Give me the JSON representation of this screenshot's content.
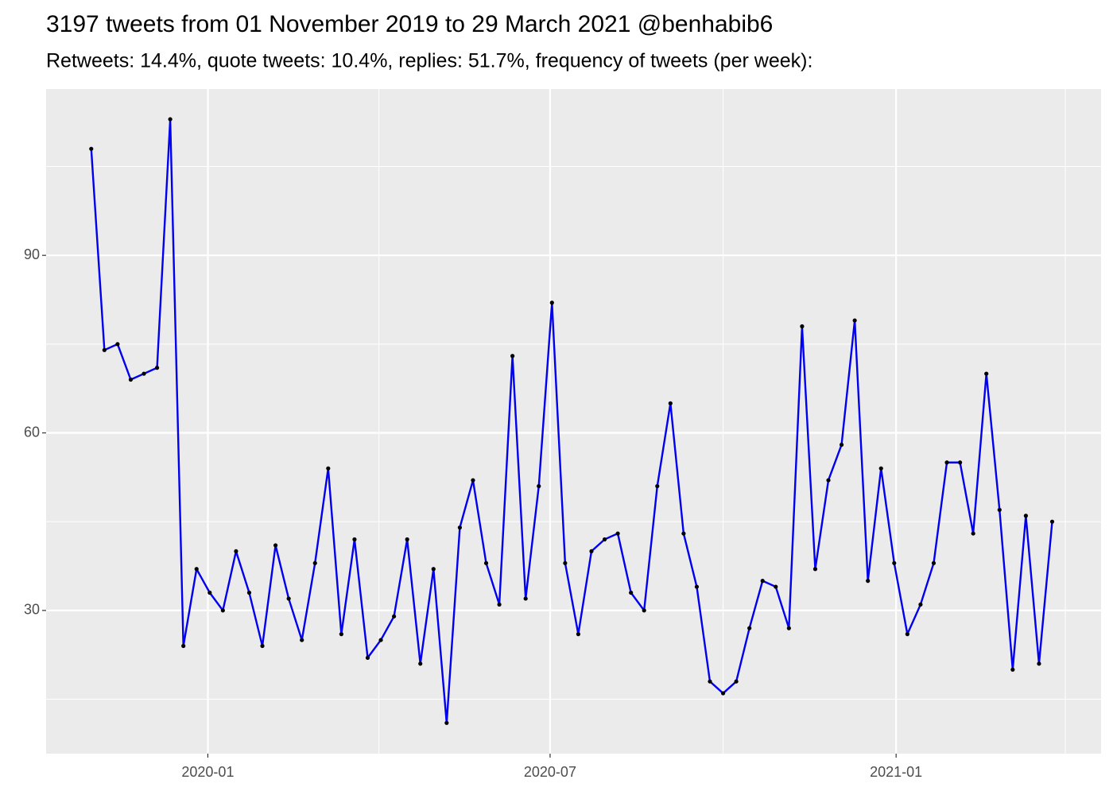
{
  "chart_data": {
    "type": "line",
    "title": "3197 tweets from 01 November 2019 to 29 March 2021 @benhabib6",
    "subtitle": "Retweets: 14.4%, quote tweets: 10.4%, replies: 51.7%, frequency of tweets (per week):",
    "x": [
      "2019-10-31",
      "2019-11-07",
      "2019-11-14",
      "2019-11-21",
      "2019-11-28",
      "2019-12-05",
      "2019-12-12",
      "2019-12-19",
      "2019-12-26",
      "2020-01-02",
      "2020-01-09",
      "2020-01-16",
      "2020-01-23",
      "2020-01-30",
      "2020-02-06",
      "2020-02-13",
      "2020-02-20",
      "2020-02-27",
      "2020-03-05",
      "2020-03-12",
      "2020-03-19",
      "2020-03-26",
      "2020-04-02",
      "2020-04-09",
      "2020-04-16",
      "2020-04-23",
      "2020-04-30",
      "2020-05-07",
      "2020-05-14",
      "2020-05-21",
      "2020-05-28",
      "2020-06-04",
      "2020-06-11",
      "2020-06-18",
      "2020-06-25",
      "2020-07-02",
      "2020-07-09",
      "2020-07-16",
      "2020-07-23",
      "2020-07-30",
      "2020-08-06",
      "2020-08-13",
      "2020-08-20",
      "2020-08-27",
      "2020-09-03",
      "2020-09-10",
      "2020-09-17",
      "2020-09-24",
      "2020-10-01",
      "2020-10-08",
      "2020-10-15",
      "2020-10-22",
      "2020-10-29",
      "2020-11-05",
      "2020-11-12",
      "2020-11-19",
      "2020-11-26",
      "2020-12-03",
      "2020-12-10",
      "2020-12-17",
      "2020-12-24",
      "2020-12-31",
      "2021-01-07",
      "2021-01-14",
      "2021-01-21",
      "2021-01-28",
      "2021-02-04",
      "2021-02-11",
      "2021-02-18",
      "2021-02-25",
      "2021-03-04",
      "2021-03-11",
      "2021-03-18",
      "2021-03-25"
    ],
    "series": [
      {
        "color": "#0000ee",
        "point_color": "#000000",
        "values": [
          108,
          74,
          75,
          69,
          70,
          71,
          113,
          24,
          37,
          33,
          30,
          40,
          33,
          24,
          41,
          32,
          25,
          38,
          54,
          26,
          42,
          22,
          25,
          29,
          42,
          21,
          37,
          11,
          44,
          52,
          38,
          31,
          73,
          32,
          51,
          82,
          38,
          26,
          40,
          42,
          43,
          33,
          30,
          51,
          65,
          43,
          34,
          18,
          16,
          18,
          27,
          35,
          34,
          27,
          78,
          37,
          52,
          58,
          79,
          35,
          54,
          38,
          26,
          31,
          38,
          55,
          55,
          43,
          70,
          47,
          20,
          46,
          21,
          45
        ]
      }
    ],
    "xlim": [
      "2019-10-07",
      "2021-04-20"
    ],
    "xticks": [
      {
        "value": "2020-01-01",
        "label": "2020-01"
      },
      {
        "value": "2020-07-01",
        "label": "2020-07"
      },
      {
        "value": "2021-01-01",
        "label": "2021-01"
      }
    ],
    "x_minor_ticks": [
      "2020-04-01",
      "2020-10-01",
      "2021-04-01"
    ],
    "ylim": [
      5.8,
      118.1
    ],
    "yticks": [
      30,
      60,
      90
    ],
    "y_minor_ticks": [
      15,
      45,
      75,
      105
    ],
    "grid": true
  }
}
